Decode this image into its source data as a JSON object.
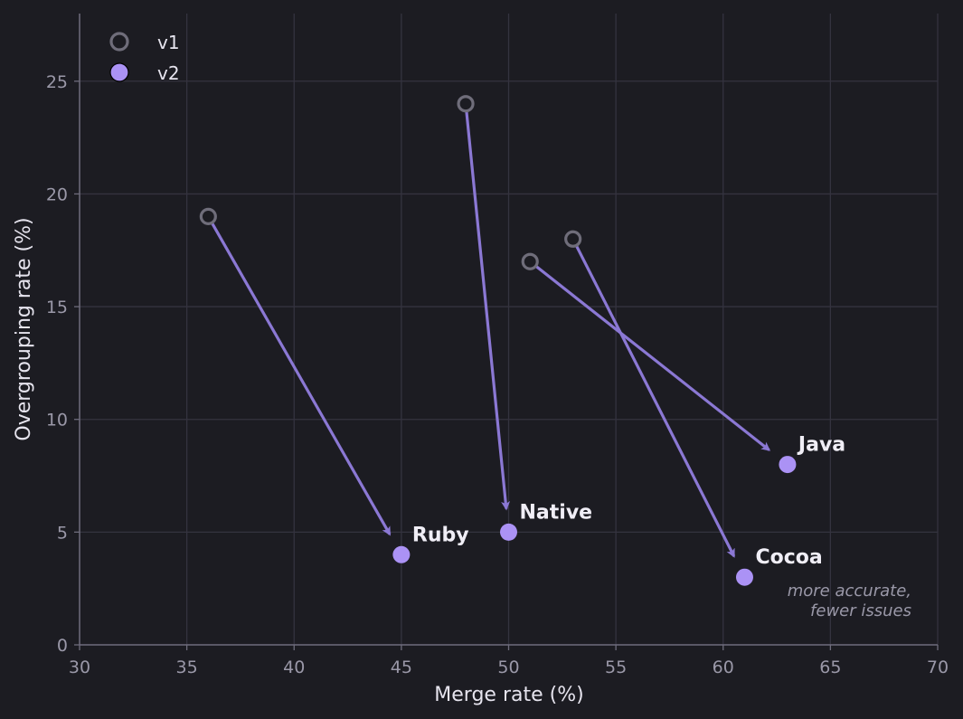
{
  "chart_data": {
    "type": "scatter",
    "xlabel": "Merge rate (%)",
    "ylabel": "Overgrouping rate (%)",
    "xlim": [
      30,
      70
    ],
    "ylim": [
      0,
      28
    ],
    "xticks": [
      30,
      35,
      40,
      45,
      50,
      55,
      60,
      65,
      70
    ],
    "yticks": [
      0,
      5,
      10,
      15,
      20,
      25
    ],
    "grid": true,
    "legend": {
      "placement": "top-left",
      "entries": [
        "v1",
        "v2"
      ]
    },
    "series": [
      {
        "name": "v1",
        "marker": "hollow-circle",
        "points": [
          {
            "label": "Ruby",
            "x": 36,
            "y": 19
          },
          {
            "label": "Native",
            "x": 48,
            "y": 24
          },
          {
            "label": "Java",
            "x": 51,
            "y": 17
          },
          {
            "label": "Cocoa",
            "x": 53,
            "y": 18
          }
        ]
      },
      {
        "name": "v2",
        "marker": "filled-circle",
        "points": [
          {
            "label": "Ruby",
            "x": 45,
            "y": 4
          },
          {
            "label": "Native",
            "x": 50,
            "y": 5
          },
          {
            "label": "Java",
            "x": 63,
            "y": 8
          },
          {
            "label": "Cocoa",
            "x": 61,
            "y": 3
          }
        ]
      }
    ],
    "arrows": "v1 to v2 per label",
    "annotation": [
      "more accurate,",
      "fewer issues"
    ]
  },
  "colors": {
    "background": "#1c1c22",
    "grid": "#34333f",
    "axis": "#6e6c7c",
    "v1_marker": "#6f6d7a",
    "v2_marker": "#ab92f5",
    "arrow": "#8b78d4"
  }
}
